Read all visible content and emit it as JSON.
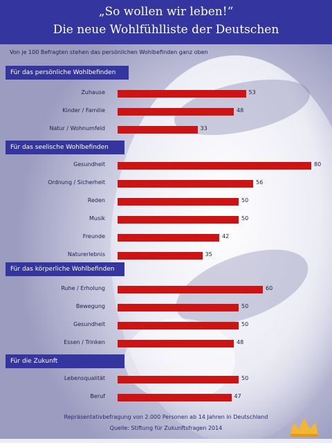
{
  "header": {
    "title_line1": "„So wollen wir leben!“",
    "title_line2": "Die neue Wohlfühlliste der Deutschen"
  },
  "subtitle": "Von je 100 Befragten stehen das persönlichen Wohlbefinden ganz oben",
  "chart_data": {
    "type": "bar",
    "orientation": "horizontal",
    "groups": [
      {
        "title": "Für das persönliche Wohlbefinden",
        "categories": [
          "Zuhause",
          "Kinder / Familie",
          "Natur / Wohnumfeld"
        ],
        "values": [
          53,
          48,
          33
        ]
      },
      {
        "title": "Für das seelische Wohlbefinden",
        "categories": [
          "Gesundheit",
          "Ordnung / Sicherheit",
          "Reden",
          "Musik",
          "Freunde",
          "Naturerlebnis"
        ],
        "values": [
          80,
          56,
          50,
          50,
          42,
          35
        ]
      },
      {
        "title": "Für das körperliche Wohlbefinden",
        "categories": [
          "Ruhe / Erholung",
          "Bewegung",
          "Gesundheit",
          "Essen / Trinken"
        ],
        "values": [
          60,
          50,
          50,
          48
        ]
      },
      {
        "title": "Für die Zukunft",
        "categories": [
          "Lebensqualität",
          "Beruf"
        ],
        "values": [
          50,
          47
        ]
      }
    ]
  },
  "footer": {
    "line1": "Repräsentativbefragung von 2.000 Personen ab 14 Jahren in Deutschland",
    "line2": "Quelle: Stiftung für Zukunftsfragen 2014"
  }
}
